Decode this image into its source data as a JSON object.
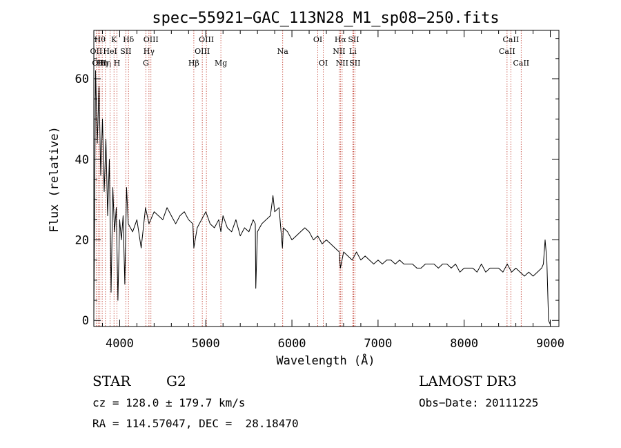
{
  "chart_data": {
    "type": "line",
    "title": "spec−55921−GAC_113N28_M1_sp08−250.fits",
    "xlabel": "Wavelength (Å)",
    "ylabel": "Flux (relative)",
    "xlim": [
      3700,
      9100
    ],
    "ylim": [
      -1.5,
      72
    ],
    "x_ticks": [
      4000,
      5000,
      6000,
      7000,
      8000,
      9000
    ],
    "y_ticks": [
      0,
      20,
      40,
      60
    ],
    "series": [
      {
        "name": "spectrum",
        "x": [
          3700,
          3720,
          3740,
          3760,
          3780,
          3800,
          3820,
          3840,
          3860,
          3880,
          3900,
          3920,
          3940,
          3960,
          3980,
          4000,
          4020,
          4040,
          4060,
          4080,
          4100,
          4150,
          4200,
          4250,
          4300,
          4340,
          4400,
          4450,
          4500,
          4550,
          4600,
          4650,
          4700,
          4750,
          4800,
          4850,
          4861,
          4900,
          4950,
          5000,
          5050,
          5100,
          5150,
          5175,
          5200,
          5250,
          5300,
          5350,
          5400,
          5450,
          5500,
          5550,
          5575,
          5580,
          5600,
          5650,
          5700,
          5750,
          5780,
          5800,
          5850,
          5890,
          5900,
          5950,
          6000,
          6050,
          6100,
          6150,
          6200,
          6250,
          6300,
          6350,
          6400,
          6450,
          6500,
          6550,
          6563,
          6600,
          6650,
          6700,
          6750,
          6800,
          6850,
          6900,
          6950,
          7000,
          7050,
          7100,
          7150,
          7200,
          7250,
          7300,
          7350,
          7400,
          7450,
          7500,
          7550,
          7600,
          7650,
          7700,
          7750,
          7800,
          7850,
          7900,
          7950,
          8000,
          8050,
          8100,
          8150,
          8200,
          8250,
          8300,
          8350,
          8400,
          8450,
          8500,
          8550,
          8600,
          8650,
          8700,
          8750,
          8800,
          8850,
          8900,
          8920,
          8940,
          8960,
          8980,
          9000
        ],
        "values": [
          1,
          62,
          44,
          58,
          36,
          50,
          32,
          45,
          26,
          40,
          7,
          33,
          22,
          28,
          5,
          25,
          20,
          26,
          9,
          33,
          24,
          22,
          25,
          18,
          28,
          24,
          27,
          26,
          25,
          28,
          26,
          24,
          26,
          27,
          25,
          24,
          18,
          23,
          25,
          27,
          24,
          23,
          25,
          22,
          26,
          23,
          22,
          25,
          21,
          23,
          22,
          25,
          24,
          8,
          22,
          24,
          25,
          26,
          31,
          27,
          28,
          18,
          23,
          22,
          20,
          21,
          22,
          23,
          22,
          20,
          21,
          19,
          20,
          19,
          18,
          17,
          13,
          17,
          16,
          15,
          17,
          15,
          16,
          15,
          14,
          15,
          14,
          15,
          15,
          14,
          15,
          14,
          14,
          14,
          13,
          13,
          14,
          14,
          14,
          13,
          14,
          14,
          13,
          14,
          12,
          13,
          13,
          13,
          12,
          14,
          12,
          13,
          13,
          13,
          12,
          14,
          12,
          13,
          12,
          11,
          12,
          11,
          12,
          13,
          14,
          20,
          15,
          0,
          -1
        ]
      }
    ],
    "line_marks": [
      {
        "x": 3727,
        "label": "OII",
        "row": 2
      },
      {
        "x": 3750,
        "label": "OII",
        "row": 3
      },
      {
        "x": 3770,
        "label": "Hθ",
        "row": 1
      },
      {
        "x": 3797,
        "label": "Hη",
        "row": 3
      },
      {
        "x": 3835,
        "label": "Hη",
        "row": 3
      },
      {
        "x": 3889,
        "label": "HeI",
        "row": 2
      },
      {
        "x": 3934,
        "label": "K",
        "row": 1
      },
      {
        "x": 3969,
        "label": "H",
        "row": 3
      },
      {
        "x": 4071,
        "label": "SII",
        "row": 2
      },
      {
        "x": 4102,
        "label": "Hδ",
        "row": 1
      },
      {
        "x": 4304,
        "label": "G",
        "row": 3
      },
      {
        "x": 4340,
        "label": "Hγ",
        "row": 2
      },
      {
        "x": 4363,
        "label": "OIII",
        "row": 1
      },
      {
        "x": 4861,
        "label": "Hβ",
        "row": 3
      },
      {
        "x": 4959,
        "label": "OIII",
        "row": 2
      },
      {
        "x": 5007,
        "label": "OIII",
        "row": 1
      },
      {
        "x": 5175,
        "label": "Mg",
        "row": 3
      },
      {
        "x": 5893,
        "label": "Na",
        "row": 2
      },
      {
        "x": 6300,
        "label": "OI",
        "row": 1
      },
      {
        "x": 6364,
        "label": "OI",
        "row": 3
      },
      {
        "x": 6548,
        "label": "NII",
        "row": 2
      },
      {
        "x": 6563,
        "label": "Hα",
        "row": 1
      },
      {
        "x": 6583,
        "label": "NII",
        "row": 3
      },
      {
        "x": 6707,
        "label": "Li",
        "row": 2
      },
      {
        "x": 6716,
        "label": "SII",
        "row": 1
      },
      {
        "x": 6731,
        "label": "SII",
        "row": 3
      },
      {
        "x": 8498,
        "label": "CaII",
        "row": 2
      },
      {
        "x": 8542,
        "label": "CaII",
        "row": 1
      },
      {
        "x": 8662,
        "label": "CaII",
        "row": 3
      }
    ]
  },
  "info": {
    "class": "STAR",
    "subclass": "G2",
    "survey": "LAMOST DR3",
    "cz": "cz = 128.0 ± 179.7 km/s",
    "obs_date": "Obs−Date: 20111225",
    "radec": "RA = 114.57047, DEC =  28.18470"
  }
}
